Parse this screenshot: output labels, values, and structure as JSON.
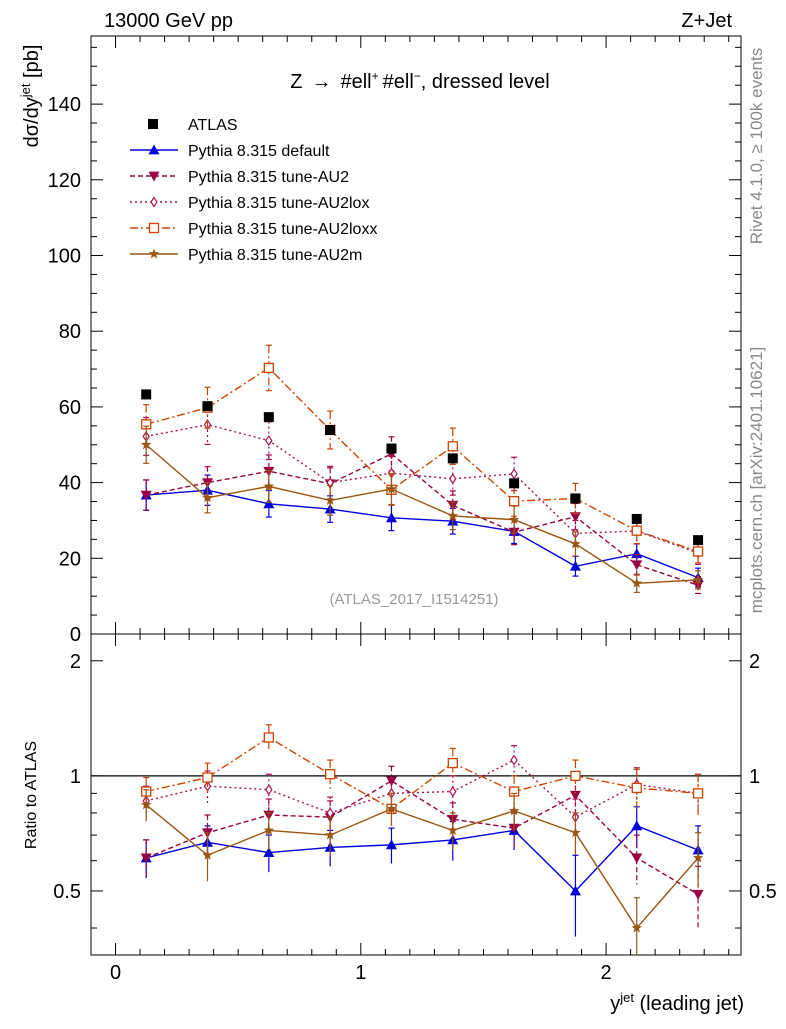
{
  "header": {
    "energy": "13000 GeV pp",
    "process": "Z+Jet"
  },
  "side_labels": {
    "rivet": "Rivet 4.1.0, ≥ 100k events",
    "url": "mcplots.cern.ch [arXiv:2401.10621]"
  },
  "chart_data": {
    "type": "line",
    "title": "Z → #ell+ #ell−, dressed level",
    "title_parts": {
      "pre": "Z",
      "arrow": "→",
      "l1": "#ell",
      "s1": "+",
      "l2": "#ell",
      "s2": "−",
      "post": ", dressed level"
    },
    "analysis_id": "(ATLAS_2017_I1514251)",
    "xlabel": "y^jet (leading jet)",
    "xlabel_parts": {
      "base": "y",
      "sup": "jet",
      "rest": " (leading jet)"
    },
    "ylabel": "dσ/dy^jet [pb]",
    "ylabel_parts": {
      "base": "dσ/dy",
      "sup": "jet",
      "rest": " [pb]"
    },
    "ratio_ylabel": "Ratio to ATLAS",
    "xlim": [
      -0.1,
      2.55
    ],
    "ylim": [
      0,
      158
    ],
    "ratio_ylim": [
      0.34,
      2.35
    ],
    "x_ticks": [
      0,
      1,
      2
    ],
    "x_tick_labels": [
      "0",
      "1",
      "2"
    ],
    "y_ticks": [
      20,
      40,
      60,
      80,
      100,
      120,
      140
    ],
    "y_tick_labels": [
      "20",
      "40",
      "60",
      "80",
      "100",
      "120",
      "140"
    ],
    "y_zero_label": "0",
    "ratio_ticks": [
      0.5,
      1,
      2
    ],
    "ratio_tick_labels": [
      "0.5",
      "1",
      "2"
    ],
    "x": [
      0.125,
      0.375,
      0.625,
      0.875,
      1.125,
      1.375,
      1.625,
      1.875,
      2.125,
      2.375
    ],
    "data": {
      "name": "ATLAS",
      "color": "#000000",
      "values": [
        63.3,
        60.2,
        57.3,
        53.9,
        49.0,
        46.4,
        39.8,
        35.8,
        30.4,
        24.8
      ]
    },
    "series": [
      {
        "name": "Pythia 8.315 default",
        "color": "#0000dd",
        "marker": "triangle-up",
        "dash": "",
        "values": [
          36.7,
          38.0,
          34.4,
          33.0,
          30.7,
          29.8,
          27.1,
          17.9,
          21.2,
          14.9
        ],
        "errors": [
          4.0,
          4.0,
          3.5,
          3.5,
          3.4,
          3.4,
          3.2,
          2.6,
          2.6,
          2.5
        ],
        "ratio": [
          0.61,
          0.67,
          0.63,
          0.65,
          0.66,
          0.68,
          0.72,
          0.5,
          0.74,
          0.64
        ],
        "ratio_errors": [
          0.07,
          0.07,
          0.07,
          0.07,
          0.07,
          0.08,
          0.08,
          0.12,
          0.09,
          0.1
        ]
      },
      {
        "name": "Pythia 8.315 tune-AU2",
        "color": "#990044",
        "marker": "triangle-down",
        "dash": "5,3",
        "values": [
          36.7,
          40.0,
          43.0,
          39.7,
          47.6,
          34.0,
          26.9,
          31.0,
          18.3,
          12.9
        ],
        "errors": [
          4.0,
          4.2,
          4.3,
          4.2,
          4.5,
          3.8,
          3.3,
          3.5,
          2.7,
          2.2
        ],
        "ratio": [
          0.61,
          0.71,
          0.79,
          0.78,
          0.97,
          0.77,
          0.73,
          0.89,
          0.61,
          0.49
        ],
        "ratio_errors": [
          0.07,
          0.08,
          0.08,
          0.08,
          0.09,
          0.08,
          0.08,
          0.1,
          0.09,
          0.09
        ]
      },
      {
        "name": "Pythia 8.315 tune-AU2lox",
        "color": "#aa1155",
        "marker": "diamond-open",
        "dash": "2,3",
        "values": [
          52.2,
          55.3,
          51.1,
          40.0,
          42.5,
          41.0,
          42.3,
          26.6,
          27.2,
          21.4
        ],
        "errors": [
          5.0,
          5.2,
          5.0,
          4.3,
          4.4,
          4.3,
          4.4,
          3.4,
          3.4,
          3.0
        ],
        "ratio": [
          0.86,
          0.94,
          0.92,
          0.8,
          0.9,
          0.91,
          1.1,
          0.78,
          0.95,
          0.9
        ],
        "ratio_errors": [
          0.08,
          0.09,
          0.09,
          0.08,
          0.09,
          0.09,
          0.1,
          0.09,
          0.1,
          0.11
        ]
      },
      {
        "name": "Pythia 8.315 tune-AU2loxx",
        "color": "#cc4400",
        "marker": "square-open",
        "dash": "8,3,2,3",
        "values": [
          55.4,
          59.8,
          70.3,
          53.9,
          38.1,
          49.6,
          35.1,
          35.8,
          27.3,
          21.8
        ],
        "errors": [
          5.2,
          5.4,
          6.0,
          5.0,
          4.1,
          4.8,
          4.0,
          4.0,
          3.4,
          3.0
        ],
        "ratio": [
          0.91,
          0.99,
          1.26,
          1.01,
          0.82,
          1.08,
          0.91,
          1.0,
          0.93,
          0.9
        ],
        "ratio_errors": [
          0.08,
          0.09,
          0.1,
          0.09,
          0.08,
          0.1,
          0.09,
          0.1,
          0.11,
          0.11
        ]
      },
      {
        "name": "Pythia 8.315 tune-AU2m",
        "color": "#995511",
        "marker": "star",
        "dash": "",
        "values": [
          50.0,
          36.0,
          39.0,
          35.3,
          38.3,
          31.2,
          30.2,
          23.8,
          13.4,
          14.3
        ],
        "errors": [
          4.9,
          4.0,
          4.2,
          3.9,
          4.1,
          3.6,
          3.6,
          3.2,
          2.4,
          2.4
        ],
        "ratio": [
          0.84,
          0.62,
          0.72,
          0.7,
          0.82,
          0.72,
          0.81,
          0.71,
          0.4,
          0.61
        ],
        "ratio_errors": [
          0.08,
          0.09,
          0.08,
          0.08,
          0.08,
          0.08,
          0.09,
          0.09,
          0.08,
          0.1
        ]
      }
    ],
    "legend_position": "top-left"
  }
}
